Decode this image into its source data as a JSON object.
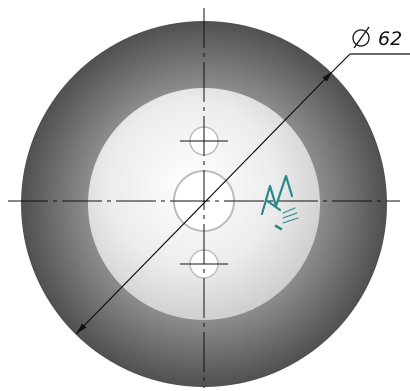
{
  "drawing": {
    "dimension": {
      "symbol": "∅",
      "value": "62"
    },
    "logo": {
      "name": "company-logo"
    },
    "colors": {
      "outer_disc_dark": "#4a4a4a",
      "outer_disc_light": "#a8a8a8",
      "inner_disc_center": "#ffffff",
      "inner_disc_edge": "#cfcfcf",
      "hole_fill": "#ffffff",
      "hole_stroke": "#bcbcbc",
      "center_line": "#111111",
      "logo": "#2a8a8a"
    }
  }
}
